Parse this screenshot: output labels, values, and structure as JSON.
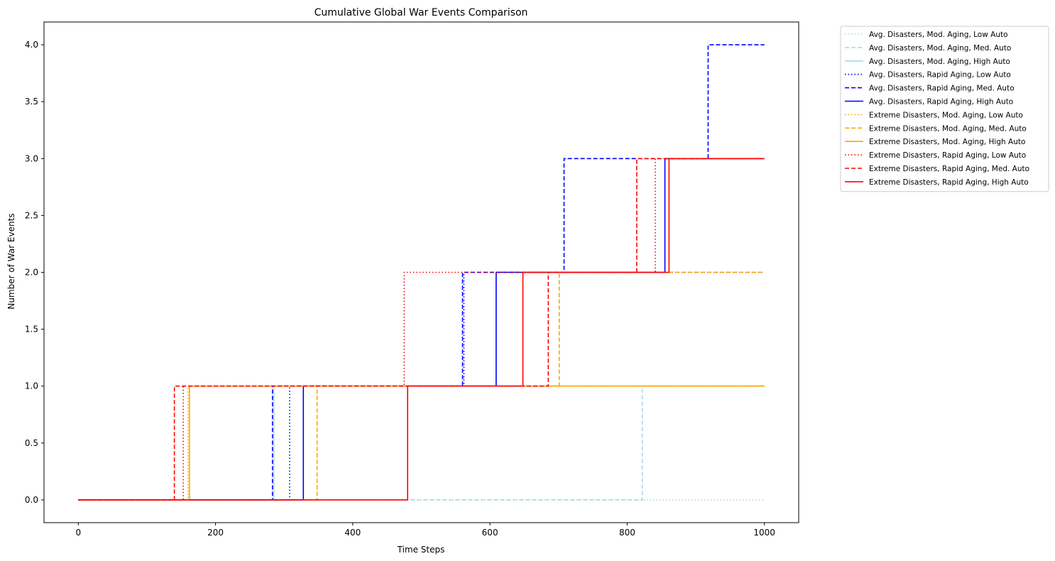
{
  "chart_data": {
    "type": "line",
    "step": "post",
    "title": "Cumulative Global War Events Comparison",
    "xlabel": "Time Steps",
    "ylabel": "Number of War Events",
    "xlim": [
      -50,
      1050
    ],
    "ylim": [
      -0.2,
      4.2
    ],
    "xticks": [
      0,
      200,
      400,
      600,
      800,
      1000
    ],
    "xtick_labels": [
      "0",
      "200",
      "400",
      "600",
      "800",
      "1000"
    ],
    "yticks": [
      0,
      0.5,
      1,
      1.5,
      2,
      2.5,
      3,
      3.5,
      4
    ],
    "ytick_labels": [
      "0.0",
      "0.5",
      "1.0",
      "1.5",
      "2.0",
      "2.5",
      "3.0",
      "3.5",
      "4.0"
    ],
    "grid": false,
    "legend_position": "outside-top-right",
    "series": [
      {
        "name": "Avg. Disasters, Mod. Aging, Low Auto",
        "color": "#add8e6",
        "dash": "dotted",
        "x_start": 0,
        "x_end": 1000,
        "steps": []
      },
      {
        "name": "Avg. Disasters, Mod. Aging, Med. Auto",
        "color": "#add8e6",
        "dash": "dashed",
        "x_start": 0,
        "x_end": 1000,
        "steps": [
          822
        ]
      },
      {
        "name": "Avg. Disasters, Mod. Aging, High Auto",
        "color": "#add8e6",
        "dash": "solid",
        "x_start": 0,
        "x_end": 1000,
        "steps": [
          285
        ]
      },
      {
        "name": "Avg. Disasters, Rapid Aging, Low Auto",
        "color": "#0000ff",
        "dash": "dotted",
        "x_start": 0,
        "x_end": 1000,
        "steps": [
          308,
          562
        ]
      },
      {
        "name": "Avg. Disasters, Rapid Aging, Med. Auto",
        "color": "#0000ff",
        "dash": "dashed",
        "x_start": 0,
        "x_end": 1000,
        "steps": [
          283,
          560,
          708,
          918
        ]
      },
      {
        "name": "Avg. Disasters, Rapid Aging, High Auto",
        "color": "#0000ff",
        "dash": "solid",
        "x_start": 0,
        "x_end": 1000,
        "steps": [
          328,
          609,
          855
        ]
      },
      {
        "name": "Extreme Disasters, Mod. Aging, Low Auto",
        "color": "#ffa500",
        "dash": "dotted",
        "x_start": 0,
        "x_end": 1000,
        "steps": [
          160
        ]
      },
      {
        "name": "Extreme Disasters, Mod. Aging, Med. Auto",
        "color": "#ffa500",
        "dash": "dashed",
        "x_start": 0,
        "x_end": 1000,
        "steps": [
          348,
          701
        ]
      },
      {
        "name": "Extreme Disasters, Mod. Aging, High Auto",
        "color": "#ffa500",
        "dash": "solid",
        "x_start": 0,
        "x_end": 1000,
        "steps": [
          162
        ]
      },
      {
        "name": "Extreme Disasters, Rapid Aging, Low Auto",
        "color": "#ff0000",
        "dash": "dotted",
        "x_start": 0,
        "x_end": 1000,
        "steps": [
          153,
          475,
          841
        ]
      },
      {
        "name": "Extreme Disasters, Rapid Aging, Med. Auto",
        "color": "#ff0000",
        "dash": "dashed",
        "x_start": 0,
        "x_end": 1000,
        "steps": [
          140,
          685,
          814
        ]
      },
      {
        "name": "Extreme Disasters, Rapid Aging, High Auto",
        "color": "#ff0000",
        "dash": "solid",
        "x_start": 0,
        "x_end": 1000,
        "steps": [
          480,
          648,
          861
        ]
      }
    ]
  }
}
